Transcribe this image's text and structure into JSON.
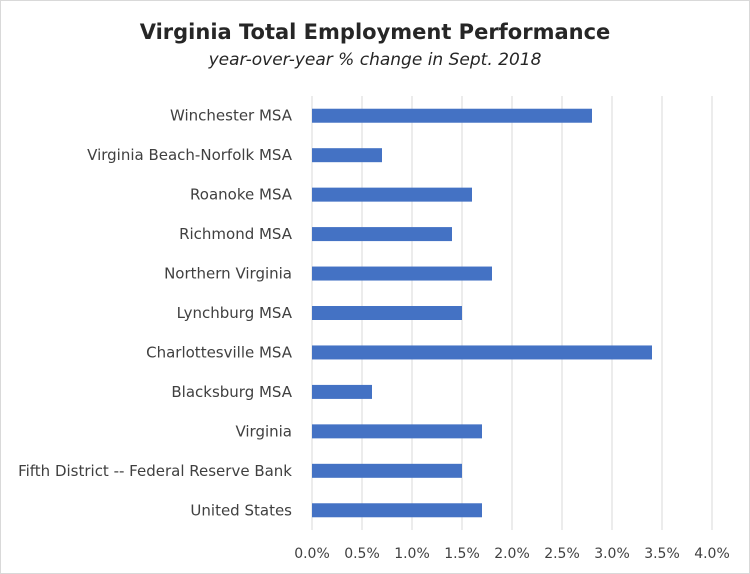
{
  "chart_data": {
    "type": "bar",
    "orientation": "horizontal",
    "title": "Virginia Total Employment Performance",
    "subtitle": "year-over-year % change in Sept. 2018",
    "categories": [
      "Winchester MSA",
      "Virginia Beach-Norfolk MSA",
      "Roanoke MSA",
      "Richmond MSA",
      "Northern Virginia",
      "Lynchburg MSA",
      "Charlottesville MSA",
      "Blacksburg MSA",
      "Virginia",
      "Fifth District -- Federal Reserve Bank",
      "United States"
    ],
    "values": [
      2.8,
      0.7,
      1.6,
      1.4,
      1.8,
      1.5,
      3.4,
      0.6,
      1.7,
      1.5,
      1.7
    ],
    "xlim": [
      0,
      4.0
    ],
    "xticks": [
      "0.0%",
      "0.5%",
      "1.0%",
      "1.5%",
      "2.0%",
      "2.5%",
      "3.0%",
      "3.5%",
      "4.0%"
    ],
    "grid": "vertical",
    "legend": "none",
    "bar_color": "#4472c4",
    "grid_color": "#d9d9d9"
  }
}
